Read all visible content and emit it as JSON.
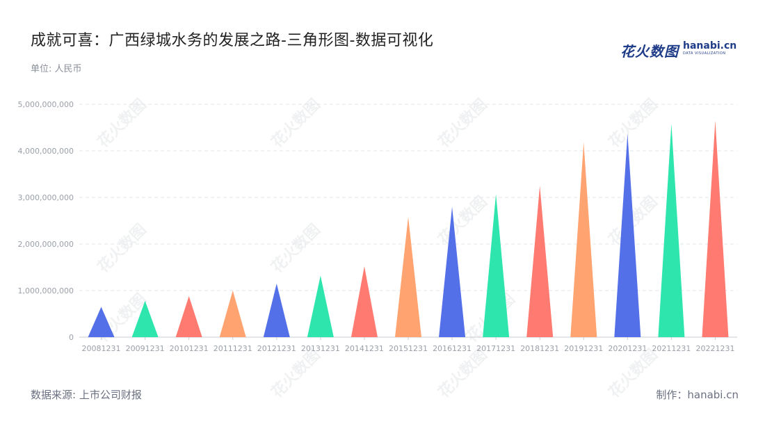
{
  "header": {
    "title": "成就可喜：广西绿城水务的发展之路-三角形图-数据可视化",
    "unit": "单位: 人民币"
  },
  "logo": {
    "cn": "花火数图",
    "en": "hanabi.cn",
    "sub": "DATA VISUALIZATION"
  },
  "footer": {
    "source": "数据来源: 上市公司财报",
    "credit": "制作：hanabi.cn"
  },
  "watermark": "花火数图",
  "chart_data": {
    "type": "bar",
    "mark_shape": "triangle",
    "title": "成就可喜：广西绿城水务的发展之路-三角形图-数据可视化",
    "unit_label": "单位: 人民币",
    "categories": [
      "20081231",
      "20091231",
      "20101231",
      "20111231",
      "20121231",
      "20131231",
      "20141231",
      "20151231",
      "20161231",
      "20171231",
      "20181231",
      "20191231",
      "20201231",
      "20211231",
      "20221231"
    ],
    "values": [
      650000000,
      780000000,
      880000000,
      1000000000,
      1150000000,
      1320000000,
      1520000000,
      2580000000,
      2800000000,
      3070000000,
      3250000000,
      4180000000,
      4370000000,
      4580000000,
      4650000000
    ],
    "ylim": [
      0,
      5000000000
    ],
    "yticks": [
      0,
      1000000000,
      2000000000,
      3000000000,
      4000000000,
      5000000000
    ],
    "ytick_labels": [
      "0",
      "1,000,000,000",
      "2,000,000,000",
      "3,000,000,000",
      "4,000,000,000",
      "5,000,000,000"
    ],
    "colors": [
      "#5470e8",
      "#2ee6ad",
      "#ff7a70",
      "#ffa370"
    ],
    "grid": true,
    "legend": "none"
  }
}
